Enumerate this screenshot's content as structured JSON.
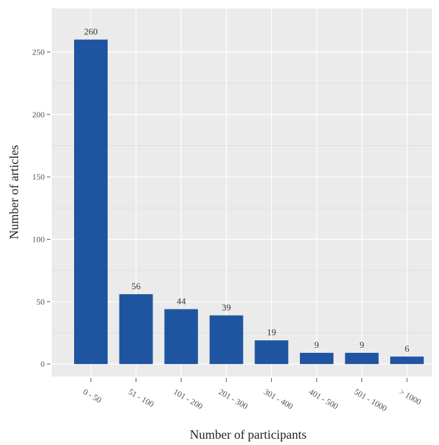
{
  "chart_data": {
    "type": "bar",
    "categories": [
      "0 - 50",
      "51 - 100",
      "101 - 200",
      "201 - 300",
      "301 - 400",
      "401 - 500",
      "501 - 1000",
      "> 1000"
    ],
    "values": [
      260,
      56,
      44,
      39,
      19,
      9,
      9,
      6
    ],
    "title": "",
    "xlabel": "Number of participants",
    "ylabel": "Number of articles",
    "ylim": [
      -10,
      285
    ],
    "yticks": [
      0,
      50,
      100,
      150,
      200,
      250
    ],
    "grid": true,
    "legend": "none",
    "colors": {
      "bar": "#1f55a0",
      "panel": "#ebebeb",
      "grid_major": "#ffffff",
      "grid_minor": "#dedede"
    }
  }
}
